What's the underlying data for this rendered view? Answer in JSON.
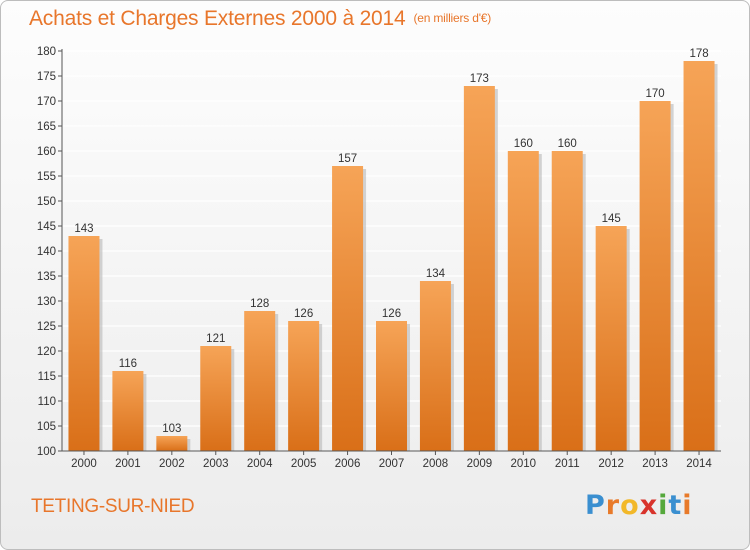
{
  "header": {
    "title": "Achats et Charges Externes 2000 à 2014",
    "subtitle": "(en milliers d'€)"
  },
  "footer": {
    "commune": "TETING-SUR-NIED",
    "logo": {
      "letters": [
        "P",
        "r",
        "o",
        "x",
        "i",
        "t",
        "i"
      ],
      "colors": [
        "#3a8fd0",
        "#e87a2a",
        "#f2b829",
        "#d8332b",
        "#55a83c",
        "#3a8fd0",
        "#e87a2a"
      ]
    }
  },
  "colors": {
    "bar_top": "#f6a457",
    "bar_bottom": "#d96f18",
    "bar_shadow": "#b8b8b8",
    "grid": "#ffffff",
    "axis": "#555555",
    "text": "#333333",
    "accent": "#e8762b"
  },
  "chart_data": {
    "type": "bar",
    "title": "Achats et Charges Externes 2000 à 2014",
    "subtitle": "(en milliers d'€)",
    "xlabel": "",
    "ylabel": "",
    "categories": [
      "2000",
      "2001",
      "2002",
      "2003",
      "2004",
      "2005",
      "2006",
      "2007",
      "2008",
      "2009",
      "2010",
      "2011",
      "2012",
      "2013",
      "2014"
    ],
    "values": [
      143,
      116,
      103,
      121,
      128,
      126,
      157,
      126,
      134,
      173,
      160,
      160,
      145,
      170,
      178
    ],
    "data_labels": [
      "143",
      "116",
      "103",
      "121",
      "128",
      "126",
      "157",
      "126",
      "134",
      "173",
      "160",
      "160",
      "145",
      "170",
      "178"
    ],
    "ylim": [
      100,
      180
    ],
    "yticks": [
      100,
      105,
      110,
      115,
      120,
      125,
      130,
      135,
      140,
      145,
      150,
      155,
      160,
      165,
      170,
      175,
      180
    ],
    "ytick_labels": [
      "100",
      "105",
      "110",
      "115",
      "120",
      "125",
      "130",
      "135",
      "140",
      "145",
      "150",
      "155",
      "160",
      "165",
      "170",
      "175",
      "180"
    ],
    "grid": true,
    "legend": "none"
  }
}
